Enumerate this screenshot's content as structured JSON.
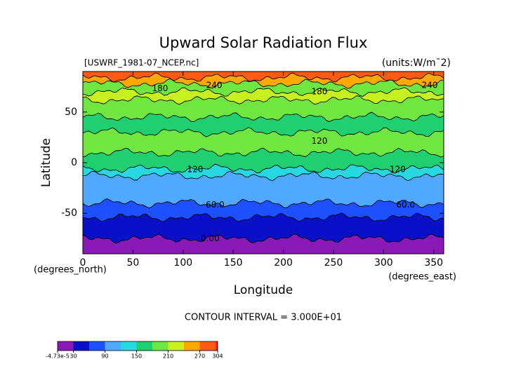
{
  "chart_data": {
    "type": "contour",
    "title": "Upward Solar Radiation Flux",
    "subtitle": "[USWRF_1981-07_NCEP.nc]",
    "units": "(units:W/m¯2)",
    "x_label": "Longitude",
    "y_label": "Latitude",
    "x_unit": "(degrees_east)",
    "y_unit": "(degrees_north)",
    "xlim": [
      0,
      360
    ],
    "xticks": [
      0,
      50,
      100,
      150,
      200,
      250,
      300,
      350
    ],
    "ylim": [
      -90,
      90
    ],
    "yticks": [
      -50,
      0,
      50
    ],
    "annotation": "CONTOUR INTERVAL = 3.000E+01",
    "colorbar": {
      "levels": [
        -4.73e-05,
        30,
        60,
        90,
        120,
        150,
        180,
        210,
        240,
        270,
        300,
        304
      ],
      "colors": [
        "#8a1ab8",
        "#0a10c8",
        "#1e50ff",
        "#50a8ff",
        "#28d8e0",
        "#20d070",
        "#70e640",
        "#c8f020",
        "#ffa800",
        "#ff5a14",
        "#ff1e1e"
      ],
      "ticks": [
        {
          "value": -4.73e-05,
          "label": "-4.73e-5"
        },
        30,
        90,
        150,
        210,
        270,
        304
      ]
    },
    "bands": [
      {
        "lat0": -90,
        "lat1": -75,
        "level": 0
      },
      {
        "lat0": -75,
        "lat1": -54,
        "level": 1
      },
      {
        "lat0": -54,
        "lat1": -40,
        "level": 2
      },
      {
        "lat0": -40,
        "lat1": -13,
        "level": 3
      },
      {
        "lat0": -13,
        "lat1": -6,
        "level": 4
      },
      {
        "lat0": -6,
        "lat1": 10,
        "level": 5
      },
      {
        "lat0": 10,
        "lat1": 30,
        "level": 6
      },
      {
        "lat0": 30,
        "lat1": 45,
        "level": 5
      },
      {
        "lat0": 45,
        "lat1": 62,
        "level": 6
      },
      {
        "lat0": 62,
        "lat1": 70,
        "level": 7
      },
      {
        "lat0": 70,
        "lat1": 78,
        "level": 6
      },
      {
        "lat0": 78,
        "lat1": 84,
        "level": 8
      },
      {
        "lat0": 84,
        "lat1": 90,
        "level": 9
      }
    ],
    "contour_labels": [
      {
        "label": "180",
        "lon": 77,
        "lat": 73
      },
      {
        "label": "240",
        "lon": 131,
        "lat": 76
      },
      {
        "label": "180",
        "lon": 236,
        "lat": 70
      },
      {
        "label": "240",
        "lon": 346,
        "lat": 76
      },
      {
        "label": "120",
        "lon": 236,
        "lat": 21
      },
      {
        "label": "120",
        "lon": 112,
        "lat": -7
      },
      {
        "label": "120",
        "lon": 314,
        "lat": -7
      },
      {
        "label": "60.0",
        "lon": 132,
        "lat": -42
      },
      {
        "label": "60.0",
        "lon": 322,
        "lat": -42
      },
      {
        "label": "0.00",
        "lon": 127,
        "lat": -75
      }
    ]
  }
}
